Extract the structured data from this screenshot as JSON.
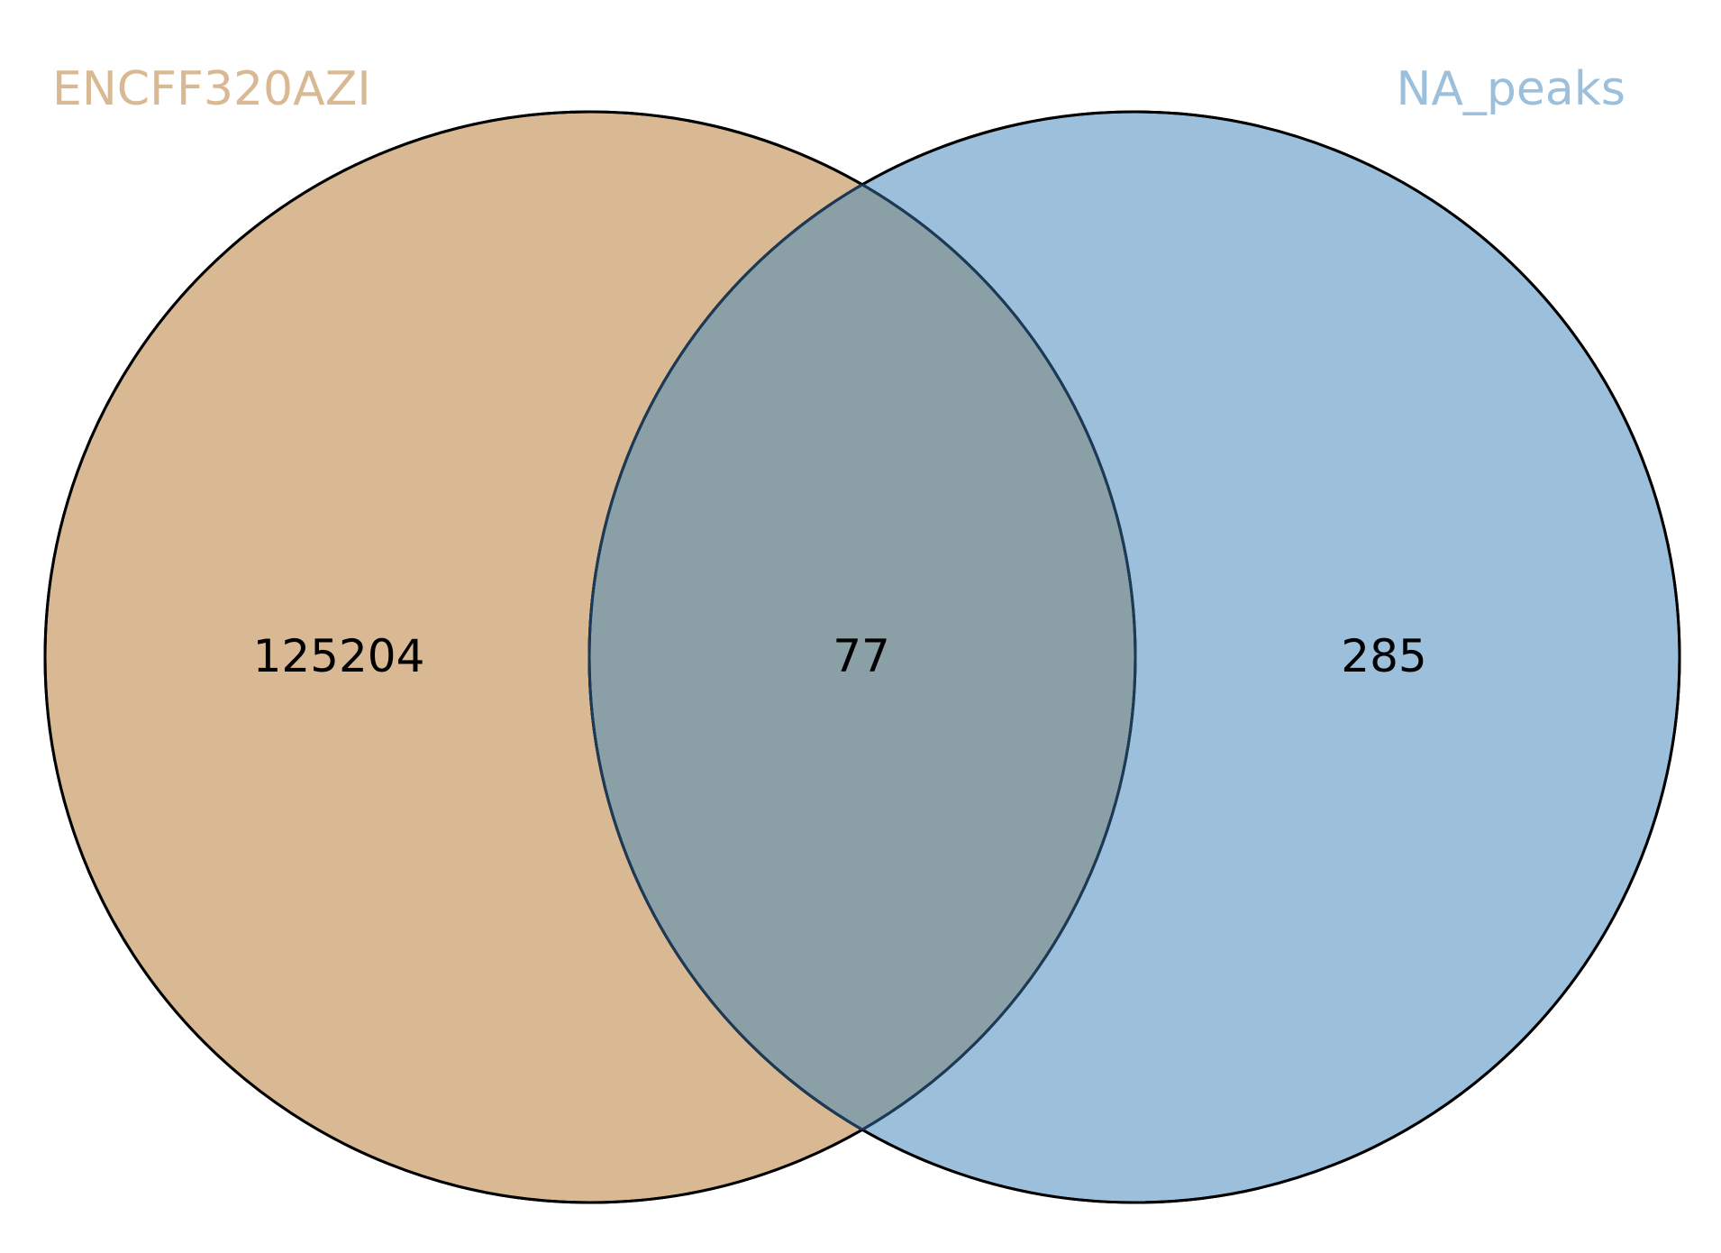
{
  "diagram": {
    "type": "venn2",
    "sets": [
      {
        "name": "ENCFF320AZI",
        "color": "#d9b994"
      },
      {
        "name": "NA_peaks",
        "color": "#9cc0db"
      }
    ],
    "counts": {
      "only_a": "125204",
      "intersection": "77",
      "only_b": "285"
    },
    "intersection_color": "#8a9fa6",
    "outline_color": "#000000",
    "intersection_outline_color": "#1a3a58"
  }
}
